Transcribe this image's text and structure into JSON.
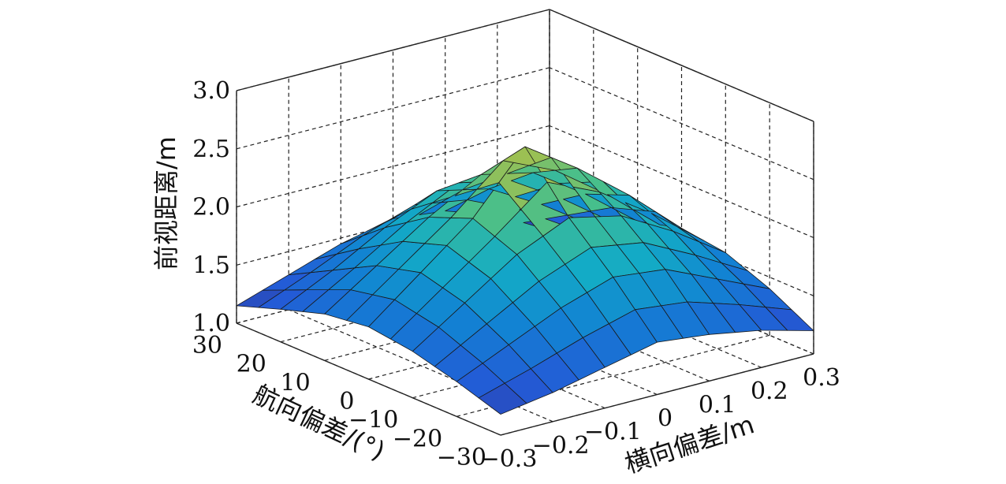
{
  "chart_data": {
    "type": "surface3d",
    "xlabel": "横向偏差/m",
    "ylabel": "航向偏差/(°)",
    "zlabel": "前视距离/m",
    "xlim": [
      -0.3,
      0.3
    ],
    "ylim": [
      -30,
      30
    ],
    "zlim": [
      1.0,
      3.0
    ],
    "x_ticks": [
      "−0.3",
      "−0.2",
      "−0.1",
      "0",
      "0.1",
      "0.2",
      "0.3"
    ],
    "y_ticks": [
      "30",
      "20",
      "10",
      "0",
      "−10",
      "−20",
      "−30"
    ],
    "z_ticks": [
      "1.0",
      "1.5",
      "2.0",
      "2.5",
      "3.0"
    ],
    "grid": true,
    "colormap": "parula",
    "x": [
      -0.3,
      -0.2,
      -0.1,
      0,
      0.1,
      0.2,
      0.3
    ],
    "y": [
      -30,
      -20,
      -10,
      0,
      10,
      20,
      30
    ],
    "z": [
      [
        1.18,
        1.25,
        1.35,
        1.45,
        1.4,
        1.32,
        1.2
      ],
      [
        1.3,
        1.5,
        1.7,
        1.85,
        1.8,
        1.6,
        1.4
      ],
      [
        1.4,
        1.7,
        2.0,
        2.2,
        2.1,
        1.85,
        1.55
      ],
      [
        1.45,
        1.8,
        2.15,
        2.65,
        2.35,
        2.0,
        1.6
      ],
      [
        1.4,
        1.7,
        2.0,
        2.25,
        2.15,
        1.85,
        1.5
      ],
      [
        1.28,
        1.5,
        1.75,
        1.95,
        1.85,
        1.6,
        1.3
      ],
      [
        1.15,
        1.3,
        1.45,
        1.55,
        1.5,
        1.35,
        1.1
      ]
    ]
  }
}
